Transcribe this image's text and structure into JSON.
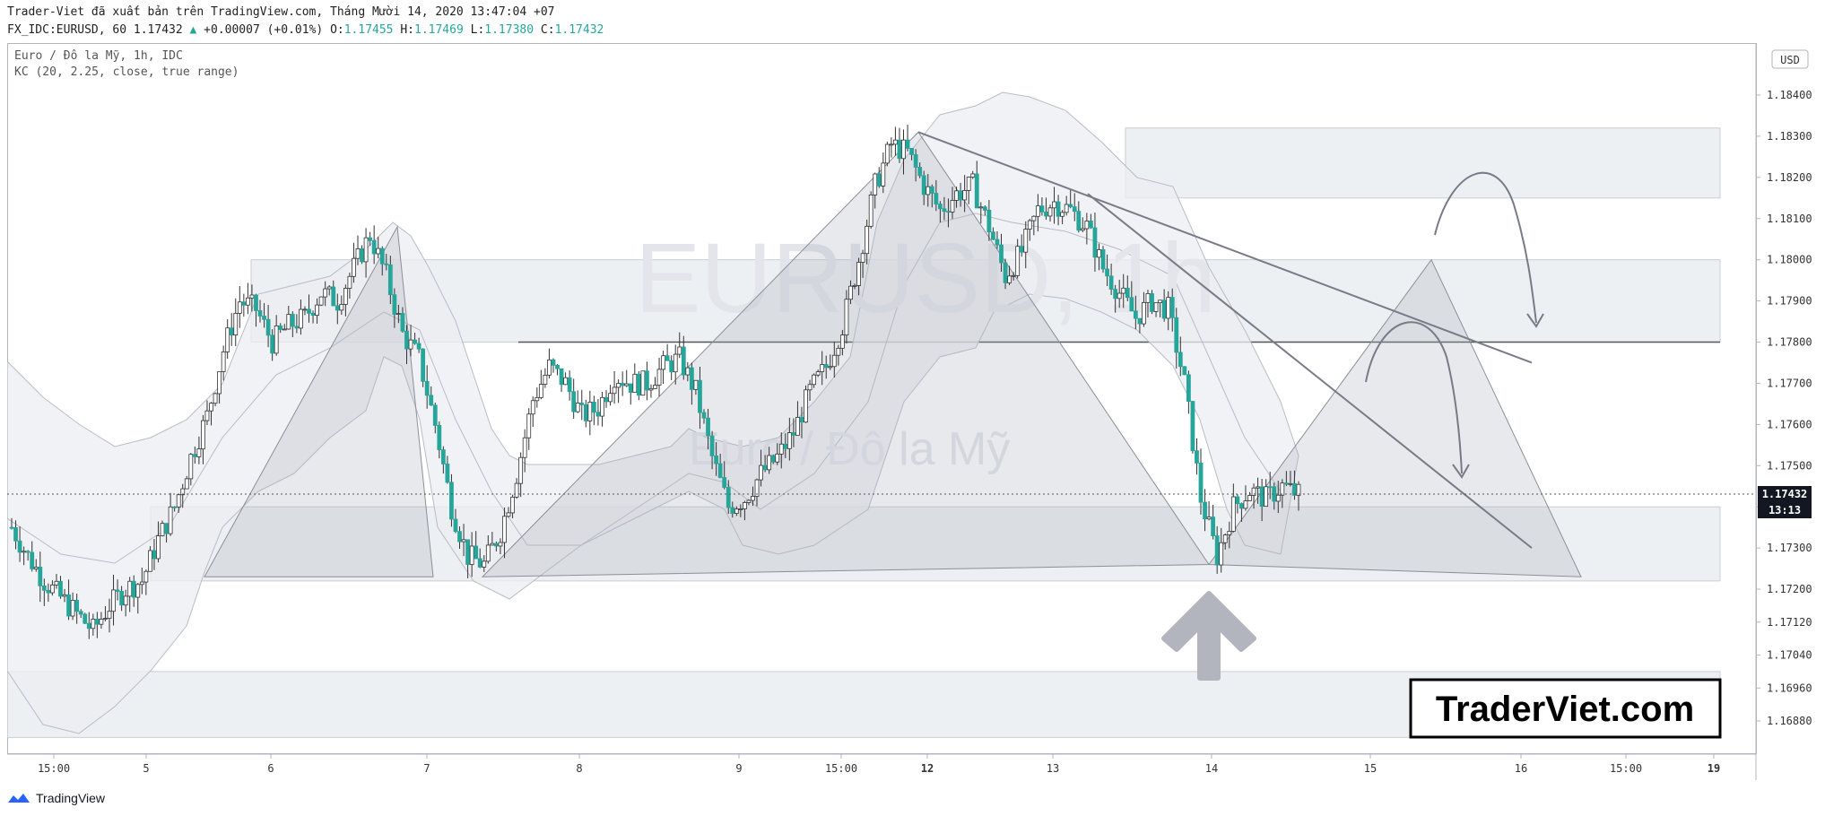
{
  "header": {
    "line1": "Trader-Viet đã xuất bản trên TradingView.com, Tháng Mười 14, 2020 13:47:04 +07",
    "symbol": "FX_IDC:EURUSD, 60",
    "last": "1.17432",
    "change": "+0.00007 (+0.01%)",
    "o_label": "O:",
    "o": "1.17455",
    "h_label": "H:",
    "h": "1.17469",
    "l_label": "L:",
    "l": "1.17380",
    "c_label": "C:",
    "c": "1.17432"
  },
  "legend": {
    "name": "Euro / Đô la Mỹ, 1h, IDC",
    "indicator": "KC (20, 2.25, close, true range)"
  },
  "watermark": {
    "symbol": "EURUSD, 1h",
    "name": "Euro / Đô la Mỹ"
  },
  "currency_button": "USD",
  "price_label": "1.17432",
  "countdown": "13:13",
  "brand": "TraderViet.com",
  "footer_brand": "TradingView",
  "colors": {
    "up": "#26a69a",
    "down": "#26a69a",
    "zone": "#e8ebef",
    "line": "#787b86"
  },
  "chart_data": {
    "type": "candlestick",
    "symbol": "EURUSD",
    "timeframe": "1h",
    "x": [
      "15:00",
      "5",
      "6",
      "7",
      "8",
      "9",
      "15:00",
      "12",
      "13",
      "14",
      "15",
      "16",
      "15:00",
      "19"
    ],
    "y_ticks": [
      "1.18400",
      "1.18300",
      "1.18200",
      "1.18100",
      "1.18000",
      "1.17900",
      "1.17800",
      "1.17700",
      "1.17600",
      "1.17500",
      "1.17400",
      "1.17300",
      "1.17200",
      "1.17120",
      "1.17040",
      "1.16960",
      "1.16880"
    ],
    "ylim": [
      1.1684,
      1.1854
    ],
    "last_price": 1.17432,
    "close_series": [
      1.1735,
      1.1728,
      1.1722,
      1.1718,
      1.1714,
      1.171,
      1.1716,
      1.172,
      1.1722,
      1.1732,
      1.174,
      1.1752,
      1.1762,
      1.1778,
      1.179,
      1.1788,
      1.178,
      1.1784,
      1.1786,
      1.1792,
      1.179,
      1.1798,
      1.1806,
      1.1796,
      1.1782,
      1.1776,
      1.176,
      1.174,
      1.1728,
      1.1726,
      1.1734,
      1.1748,
      1.1766,
      1.1774,
      1.177,
      1.1762,
      1.1764,
      1.1772,
      1.177,
      1.177,
      1.1774,
      1.1776,
      1.1768,
      1.1752,
      1.174,
      1.1742,
      1.1748,
      1.1752,
      1.1758,
      1.1768,
      1.1774,
      1.1784,
      1.18,
      1.1818,
      1.1828,
      1.1826,
      1.1818,
      1.1812,
      1.1816,
      1.1818,
      1.1808,
      1.1796,
      1.1802,
      1.1812,
      1.1814,
      1.1812,
      1.1808,
      1.1798,
      1.1792,
      1.1786,
      1.179,
      1.1788,
      1.177,
      1.1742,
      1.1728,
      1.174,
      1.1744,
      1.1742,
      1.1745,
      1.1743
    ]
  }
}
